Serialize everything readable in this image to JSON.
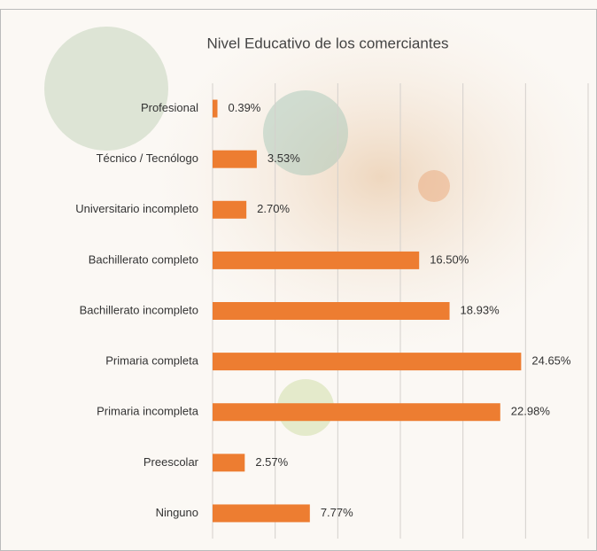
{
  "chart_data": {
    "type": "bar",
    "orientation": "horizontal",
    "title": "Nivel Educativo de los comerciantes",
    "categories": [
      "Profesional",
      "Técnico / Tecnólogo",
      "Universitario incompleto",
      "Bachillerato completo",
      "Bachillerato incompleto",
      "Primaria completa",
      "Primaria incompleta",
      "Preescolar",
      "Ninguno"
    ],
    "values": [
      0.39,
      3.53,
      2.7,
      16.5,
      18.93,
      24.65,
      22.98,
      2.57,
      7.77
    ],
    "value_labels": [
      "0.39%",
      "3.53%",
      "2.70%",
      "16.50%",
      "18.93%",
      "24.65%",
      "22.98%",
      "2.57%",
      "7.77%"
    ],
    "color": "#ed7d31",
    "xlim": [
      0,
      30
    ],
    "xticks": [
      0,
      5,
      10,
      15,
      20,
      25,
      30
    ],
    "grid": true
  }
}
